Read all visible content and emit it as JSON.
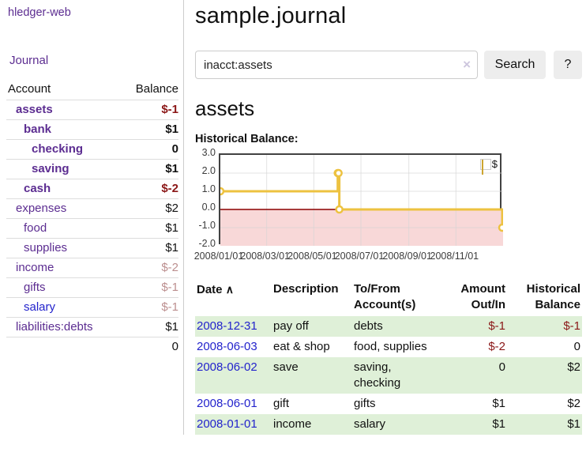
{
  "sidebar": {
    "brand": "hledger-web",
    "journal_label": "Journal",
    "accounts": {
      "headers": {
        "account": "Account",
        "balance": "Balance"
      },
      "rows": [
        {
          "name": "assets",
          "indent": 1,
          "bold": true,
          "name_color": "purple",
          "balance": "$-1",
          "balance_color": "neg"
        },
        {
          "name": "bank",
          "indent": 2,
          "bold": true,
          "name_color": "purple",
          "balance": "$1",
          "balance_color": "pos"
        },
        {
          "name": "checking",
          "indent": 3,
          "bold": true,
          "name_color": "purple",
          "balance": "0",
          "balance_color": "pos"
        },
        {
          "name": "saving",
          "indent": 3,
          "bold": true,
          "name_color": "purple",
          "balance": "$1",
          "balance_color": "pos"
        },
        {
          "name": "cash",
          "indent": 2,
          "bold": true,
          "name_color": "purple",
          "balance": "$-2",
          "balance_color": "neg"
        },
        {
          "name": "expenses",
          "indent": 1,
          "bold": false,
          "name_color": "purple",
          "balance": "$2",
          "balance_color": "pos"
        },
        {
          "name": "food",
          "indent": 2,
          "bold": false,
          "name_color": "purple",
          "balance": "$1",
          "balance_color": "pos"
        },
        {
          "name": "supplies",
          "indent": 2,
          "bold": false,
          "name_color": "purple",
          "balance": "$1",
          "balance_color": "pos"
        },
        {
          "name": "income",
          "indent": 1,
          "bold": false,
          "name_color": "purple",
          "balance": "$-2",
          "balance_color": "negl"
        },
        {
          "name": "gifts",
          "indent": 2,
          "bold": false,
          "name_color": "purple",
          "balance": "$-1",
          "balance_color": "negl"
        },
        {
          "name": "salary",
          "indent": 2,
          "bold": false,
          "name_color": "blue",
          "balance": "$-1",
          "balance_color": "negl"
        },
        {
          "name": "liabilities:debts",
          "indent": 1,
          "bold": false,
          "name_color": "purple",
          "balance": "$1",
          "balance_color": "pos"
        }
      ],
      "total": "0"
    }
  },
  "main": {
    "title": "sample.journal",
    "search": {
      "value": "inacct:assets",
      "clear_icon": "×",
      "search_label": "Search",
      "help_label": "?"
    },
    "account_heading": "assets",
    "chart_label": "Historical Balance:"
  },
  "chart_data": {
    "type": "line",
    "style": "step-after",
    "title": "Historical Balance",
    "legend": {
      "label": "$",
      "position": "top-right"
    },
    "x_start": "2008-01-01",
    "x_end": "2009-01-01",
    "ylim": [
      -2,
      3
    ],
    "y_ticks": [
      {
        "v": 3,
        "label": "3.0"
      },
      {
        "v": 2,
        "label": "2.0"
      },
      {
        "v": 1,
        "label": "1.0"
      },
      {
        "v": 0,
        "label": "0.0"
      },
      {
        "v": -1,
        "label": "-1.0"
      },
      {
        "v": -2,
        "label": "-2.0"
      }
    ],
    "x_ticks": [
      {
        "date": "2008-01-01",
        "label": "2008/01/01"
      },
      {
        "date": "2008-03-01",
        "label": "2008/03/01"
      },
      {
        "date": "2008-05-01",
        "label": "2008/05/01"
      },
      {
        "date": "2008-07-01",
        "label": "2008/07/01"
      },
      {
        "date": "2008-09-01",
        "label": "2008/09/01"
      },
      {
        "date": "2008-11-01",
        "label": "2008/11/01"
      }
    ],
    "series": [
      {
        "name": "$",
        "color": "#edc240",
        "points": [
          {
            "date": "2008-01-01",
            "value": 1
          },
          {
            "date": "2008-06-01",
            "value": 2
          },
          {
            "date": "2008-06-02",
            "value": 2
          },
          {
            "date": "2008-06-03",
            "value": 0
          },
          {
            "date": "2008-12-31",
            "value": -1
          }
        ]
      }
    ],
    "grid": true,
    "negative_region_fill": "#f8d8d8",
    "zero_line_color": "#8b0000"
  },
  "register": {
    "headers": {
      "date": "Date",
      "sort_icon": "∧",
      "description": "Description",
      "accounts_line1": "To/From",
      "accounts_line2": "Account(s)",
      "amount_line1": "Amount",
      "amount_line2": "Out/In",
      "balance_line1": "Historical",
      "balance_line2": "Balance"
    },
    "rows": [
      {
        "date": "2008-12-31",
        "description": "pay off",
        "accounts": "debts",
        "amount": "$-1",
        "amount_color": "neg",
        "balance": "$-1",
        "balance_color": "neg",
        "green": true
      },
      {
        "date": "2008-06-03",
        "description": "eat & shop",
        "accounts": "food, supplies",
        "amount": "$-2",
        "amount_color": "neg",
        "balance": "0",
        "balance_color": "pos",
        "green": false
      },
      {
        "date": "2008-06-02",
        "description": "save",
        "accounts": "saving, checking",
        "amount": "0",
        "amount_color": "pos",
        "balance": "$2",
        "balance_color": "pos",
        "green": true
      },
      {
        "date": "2008-06-01",
        "description": "gift",
        "accounts": "gifts",
        "amount": "$1",
        "amount_color": "pos",
        "balance": "$2",
        "balance_color": "pos",
        "green": false
      },
      {
        "date": "2008-01-01",
        "description": "income",
        "accounts": "salary",
        "amount": "$1",
        "amount_color": "pos",
        "balance": "$1",
        "balance_color": "pos",
        "green": true
      }
    ]
  }
}
